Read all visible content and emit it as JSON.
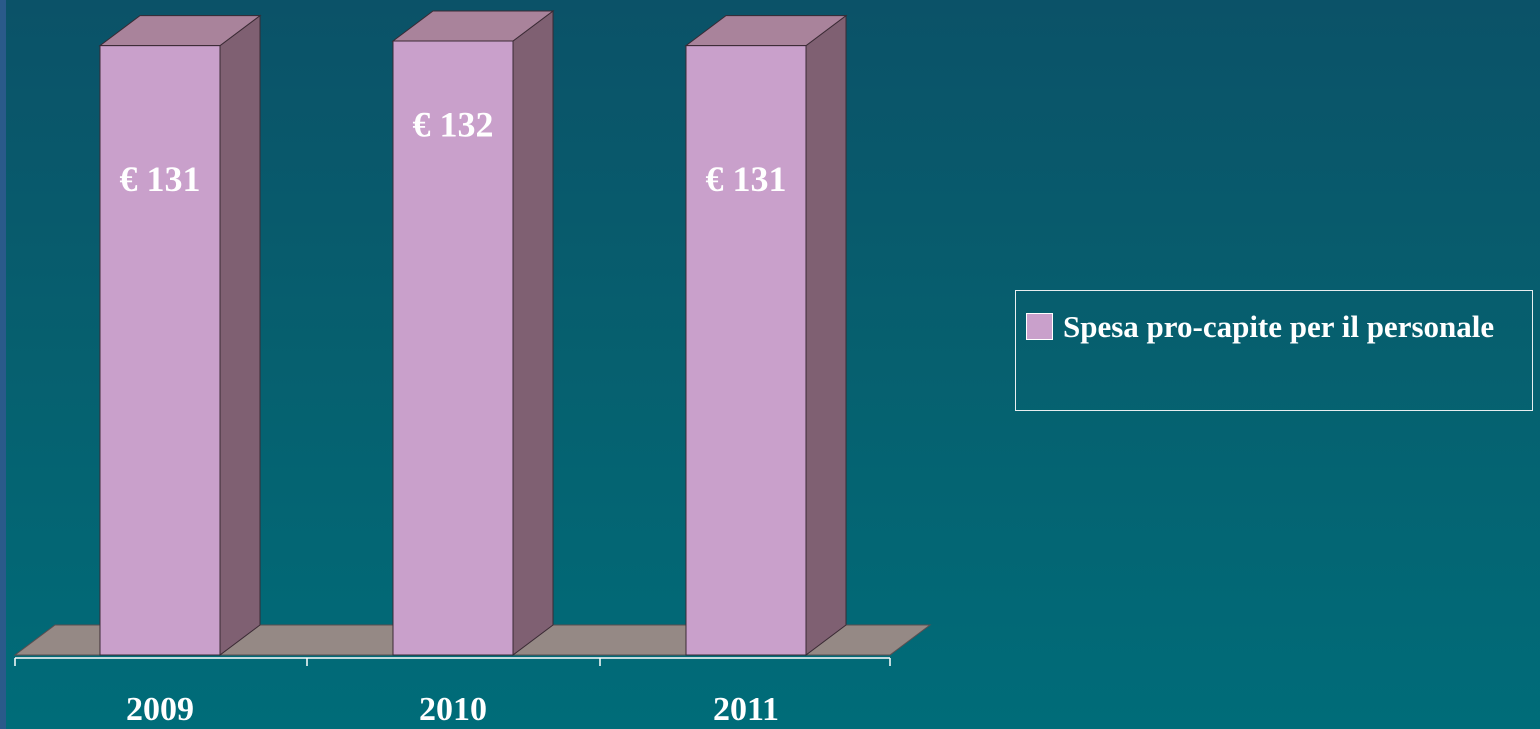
{
  "chart_data": {
    "type": "bar",
    "categories": [
      "2009",
      "2010",
      "2011"
    ],
    "series": [
      {
        "name": "Spesa pro-capite per il personale",
        "color": "#c9a0cb",
        "values": [
          131,
          132,
          131
        ],
        "value_labels": [
          "€ 131",
          "€ 132",
          "€ 131"
        ]
      }
    ],
    "legend": "right"
  }
}
